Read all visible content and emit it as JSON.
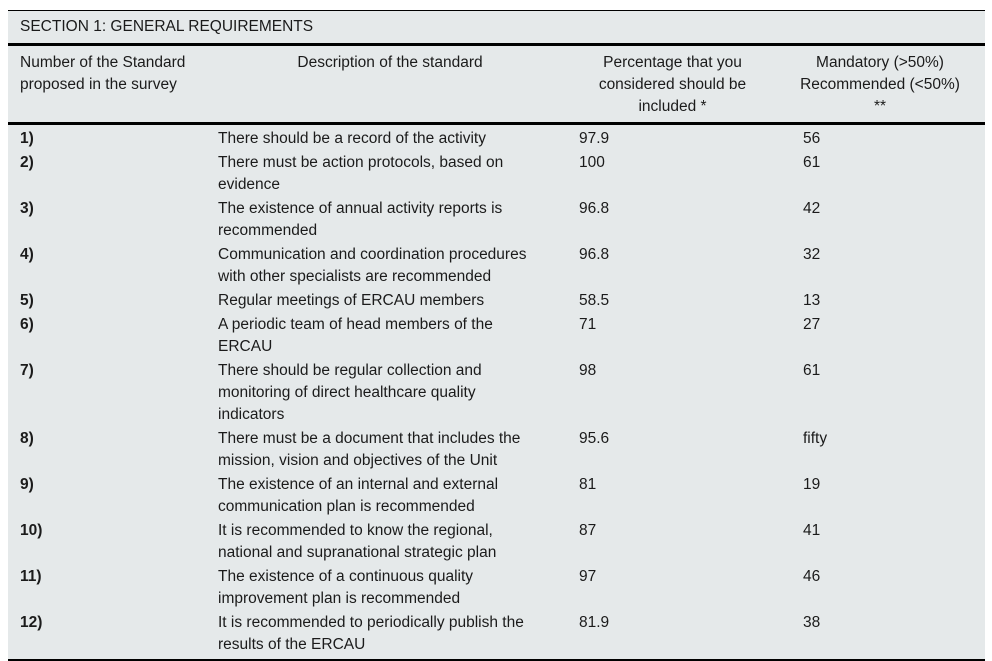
{
  "colors": {
    "table_background": "#e5e9ea",
    "rule_color": "#000000",
    "text_color": "#1b1b1b"
  },
  "section_title": "SECTION 1: GENERAL REQUIREMENTS",
  "columns": [
    {
      "lines": [
        "Number of the Standard",
        "proposed in the survey"
      ],
      "align": "left"
    },
    {
      "lines": [
        "Description of the standard"
      ],
      "align": "center"
    },
    {
      "lines": [
        "Percentage that you",
        "considered should be",
        "included *"
      ],
      "align": "center"
    },
    {
      "lines": [
        "Mandatory (>50%)",
        "Recommended (<50%)",
        "**"
      ],
      "align": "center"
    }
  ],
  "rows": [
    {
      "number": "1)",
      "description_lines": [
        "There should be a record of the activity"
      ],
      "percentage": "97.9",
      "mandatory": "56"
    },
    {
      "number": "2)",
      "description_lines": [
        "There must be action protocols, based on",
        "evidence"
      ],
      "percentage": "100",
      "mandatory": "61"
    },
    {
      "number": "3)",
      "description_lines": [
        "The existence of annual activity reports is",
        "recommended"
      ],
      "percentage": "96.8",
      "mandatory": "42"
    },
    {
      "number": "4)",
      "description_lines": [
        "Communication and coordination procedures",
        "with other specialists are recommended"
      ],
      "percentage": "96.8",
      "mandatory": "32"
    },
    {
      "number": "5)",
      "description_lines": [
        "Regular meetings of ERCAU members"
      ],
      "percentage": "58.5",
      "mandatory": "13"
    },
    {
      "number": "6)",
      "description_lines": [
        "A periodic team of head members of the",
        "ERCAU"
      ],
      "percentage": "71",
      "mandatory": "27"
    },
    {
      "number": "7)",
      "description_lines": [
        "There should be regular collection and",
        "monitoring of direct healthcare quality",
        "indicators"
      ],
      "percentage": "98",
      "mandatory": "61"
    },
    {
      "number": "8)",
      "description_lines": [
        "There must be a document that includes the",
        "mission, vision and objectives of the Unit"
      ],
      "percentage": "95.6",
      "mandatory": "fifty"
    },
    {
      "number": "9)",
      "description_lines": [
        "The existence of an internal and external",
        "communication plan is recommended"
      ],
      "percentage": "81",
      "mandatory": "19"
    },
    {
      "number": "10)",
      "description_lines": [
        "It is recommended to know the regional,",
        "national and supranational strategic plan"
      ],
      "percentage": "87",
      "mandatory": "41"
    },
    {
      "number": "11)",
      "description_lines": [
        "The existence of a continuous quality",
        "improvement plan is recommended"
      ],
      "percentage": "97",
      "mandatory": "46"
    },
    {
      "number": "12)",
      "description_lines": [
        "It is recommended to periodically publish the",
        "results of the ERCAU"
      ],
      "percentage": "81.9",
      "mandatory": "38"
    }
  ]
}
